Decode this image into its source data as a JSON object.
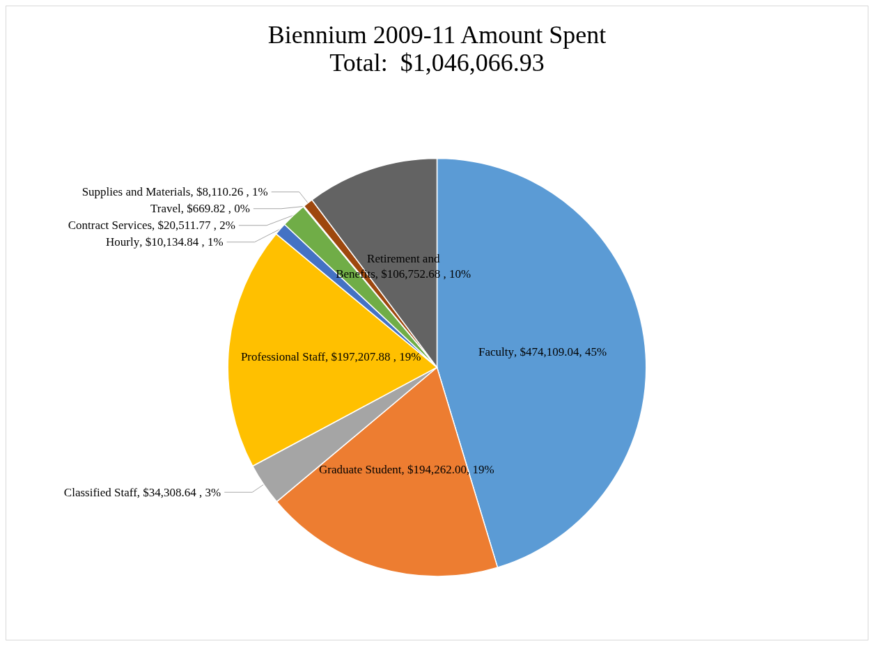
{
  "chart_data": {
    "type": "pie",
    "title": "Biennium 2009-11 Amount Spent",
    "subtitle": "Total:  $1,046,066.93",
    "categories": [
      "Faculty",
      "Graduate Student",
      "Classified Staff",
      "Professional Staff",
      "Hourly",
      "Contract Services",
      "Travel",
      "Supplies and Materials",
      "Retirement and Benefits"
    ],
    "values": [
      474109.04,
      194262.0,
      34308.64,
      197207.88,
      10134.84,
      20511.77,
      669.82,
      8110.26,
      106752.68
    ],
    "value_labels": [
      ", $474,109.04, 45%",
      ", $194,262.00, 19%",
      ", $34,308.64 , 3%",
      ", $197,207.88 , 19%",
      ", $10,134.84 , 1%",
      ", $20,511.77 , 2%",
      ", $669.82 , 0%",
      ", $8,110.26 , 1%",
      ", $106,752.68 , 10%"
    ],
    "colors": [
      "#5b9bd5",
      "#ed7d31",
      "#a5a5a5",
      "#ffc000",
      "#4472c4",
      "#70ad47",
      "#264478",
      "#9e480e",
      "#636363"
    ],
    "legend": false
  }
}
